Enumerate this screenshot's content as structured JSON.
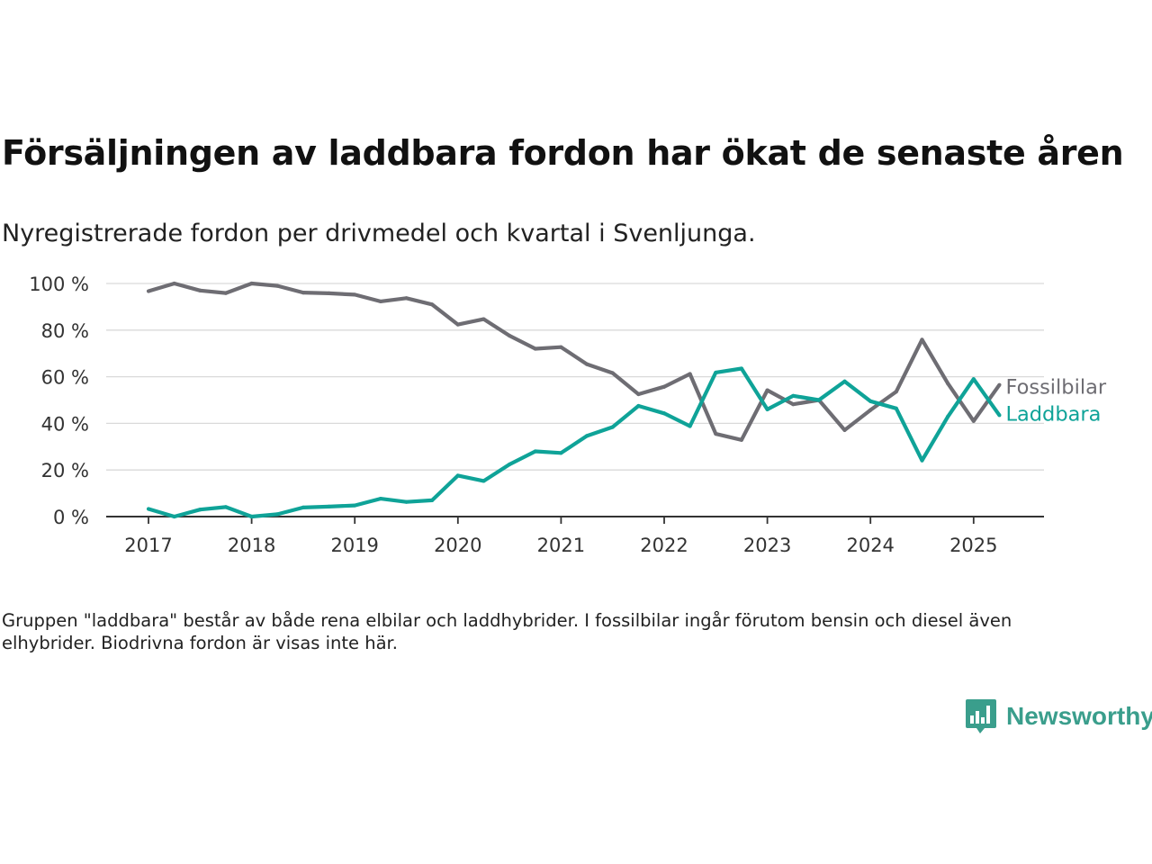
{
  "title": "Försäljningen av laddbara fordon har ökat de senaste åren",
  "subtitle": "Nyregistrerade fordon per drivmedel och kvartal i Svenljunga.",
  "footnote": "Gruppen \"laddbara\" består av både rena elbilar och laddhybrider. I fossilbilar ingår förutom bensin och diesel även elhybrider. Biodrivna fordon är visas inte här.",
  "brand": {
    "name": "Newsworthy",
    "icon": "bar-chart-speech-bubble-icon",
    "color": "#3a9e8c"
  },
  "chart_data": {
    "type": "line",
    "y_unit": "%",
    "ylim": [
      0,
      100
    ],
    "yticks": [
      0,
      20,
      40,
      60,
      80,
      100
    ],
    "ytick_labels": [
      "0 %",
      "20 %",
      "40 %",
      "60 %",
      "80 %",
      "100 %"
    ],
    "xticks": [
      "2017",
      "2018",
      "2019",
      "2020",
      "2021",
      "2022",
      "2023",
      "2024",
      "2025"
    ],
    "grid": "horizontal",
    "legend": "direct labels at line ends",
    "x": [
      "2017 Q1",
      "2017 Q2",
      "2017 Q3",
      "2017 Q4",
      "2018 Q1",
      "2018 Q2",
      "2018 Q3",
      "2018 Q4",
      "2019 Q1",
      "2019 Q2",
      "2019 Q3",
      "2019 Q4",
      "2020 Q1",
      "2020 Q2",
      "2020 Q3",
      "2020 Q4",
      "2021 Q1",
      "2021 Q2",
      "2021 Q3",
      "2021 Q4",
      "2022 Q1",
      "2022 Q2",
      "2022 Q3",
      "2022 Q4",
      "2023 Q1",
      "2023 Q2",
      "2023 Q3",
      "2023 Q4",
      "2024 Q1",
      "2024 Q2",
      "2024 Q3",
      "2024 Q4",
      "2025 Q1",
      "2025 Q2"
    ],
    "series": [
      {
        "name": "Fossilbilar",
        "color": "#6e6d73",
        "values": [
          96.7,
          100,
          97,
          95.9,
          100,
          99,
          96.1,
          95.8,
          95.2,
          92.3,
          93.7,
          91,
          82.4,
          84.7,
          77.6,
          72,
          72.7,
          65.4,
          61.6,
          52.5,
          55.7,
          61.2,
          35.5,
          32.9,
          54.2,
          48.2,
          50,
          37.1,
          45.7,
          53.6,
          75.9,
          57.1,
          41,
          56.5
        ]
      },
      {
        "name": "Laddbara",
        "color": "#0fa398",
        "values": [
          3.3,
          0,
          3,
          4.1,
          0,
          1,
          3.9,
          4.3,
          4.8,
          7.7,
          6.3,
          7,
          17.6,
          15.3,
          22.4,
          28,
          27.3,
          34.6,
          38.4,
          47.5,
          44.3,
          38.8,
          61.8,
          63.5,
          46,
          51.8,
          50,
          58,
          49.5,
          46.4,
          24.1,
          42.9,
          59,
          43.5
        ]
      }
    ]
  }
}
